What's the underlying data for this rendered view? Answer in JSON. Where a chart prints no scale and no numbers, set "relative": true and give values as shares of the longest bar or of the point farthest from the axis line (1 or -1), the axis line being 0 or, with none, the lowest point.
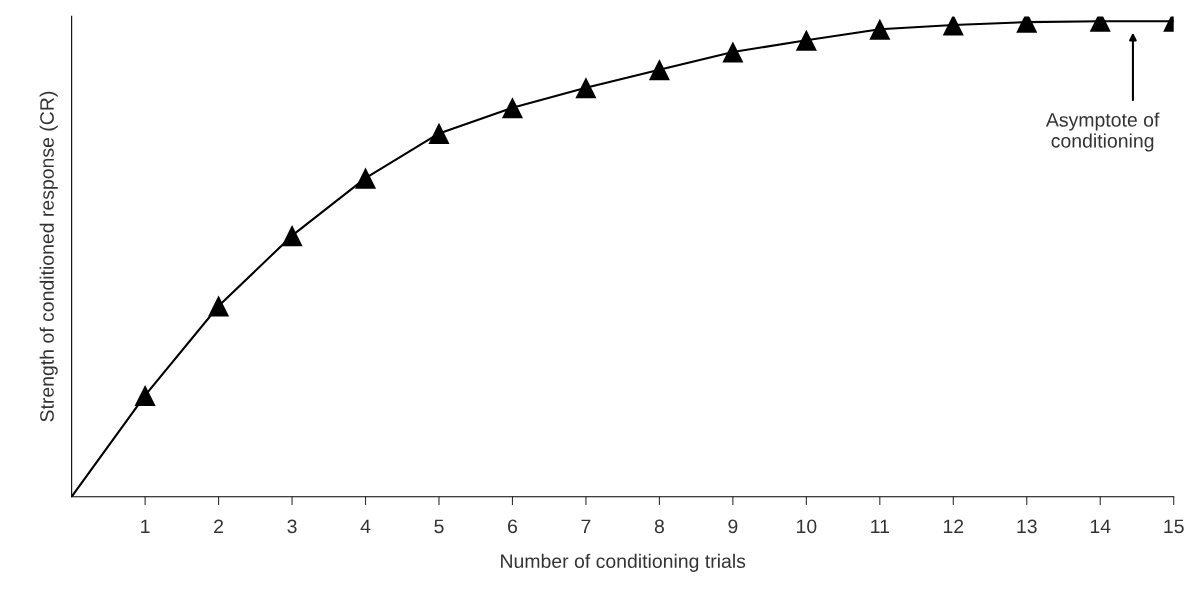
{
  "chart_data": {
    "type": "line",
    "xlabel": "Number of conditioning trials",
    "ylabel": "Strength of conditioned response (CR)",
    "relative": true,
    "xlim": [
      0,
      15
    ],
    "xticks": [
      1,
      2,
      3,
      4,
      5,
      6,
      7,
      8,
      9,
      10,
      11,
      12,
      13,
      14,
      15
    ],
    "grid": false,
    "legend": false,
    "series": [
      {
        "color": "#000000",
        "marker": "none",
        "line_style": "solid",
        "x": [
          0,
          1,
          2,
          3,
          4,
          5,
          6,
          7,
          8,
          9,
          10,
          11,
          12,
          13,
          14,
          15
        ],
        "values": [
          0,
          0.213,
          0.401,
          0.549,
          0.67,
          0.764,
          0.818,
          0.86,
          0.898,
          0.935,
          0.96,
          0.983,
          0.992,
          0.998,
          1,
          1
        ]
      },
      {
        "type": "scatter",
        "color": "#000000",
        "marker": "triangle",
        "x": [
          1,
          2,
          3,
          4,
          5,
          6,
          7,
          8,
          9,
          10,
          11,
          12,
          13,
          14,
          15
        ],
        "values": [
          0.213,
          0.401,
          0.549,
          0.67,
          0.764,
          0.818,
          0.86,
          0.898,
          0.935,
          0.96,
          0.983,
          0.992,
          0.998,
          1,
          1
        ]
      }
    ],
    "annotations": [
      "Asymptote of\nconditioning"
    ]
  }
}
